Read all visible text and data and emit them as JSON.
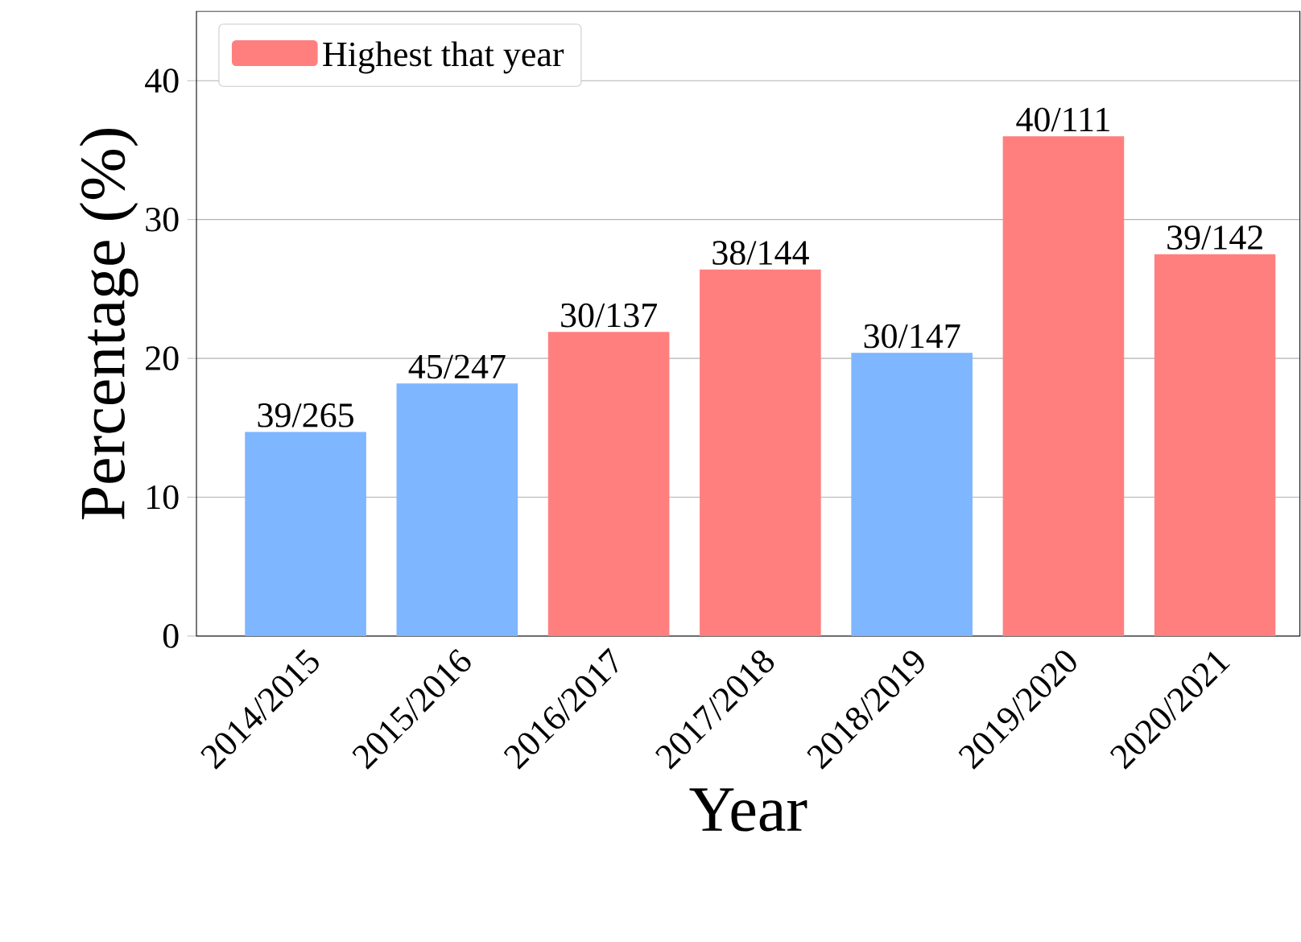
{
  "chart_data": {
    "type": "bar",
    "xlabel": "Year",
    "ylabel": "Percentage (%)",
    "categories": [
      "2014/2015",
      "2015/2016",
      "2016/2017",
      "2017/2018",
      "2018/2019",
      "2019/2020",
      "2020/2021"
    ],
    "series": [
      {
        "color": "#7eb6ff",
        "values": [
          14.7,
          18.2,
          null,
          null,
          20.4,
          null,
          null
        ],
        "value_labels": [
          "39/265",
          "45/247",
          null,
          null,
          "30/147",
          null,
          null
        ]
      },
      {
        "name": "Highest that year",
        "color": "#ff7f7f",
        "values": [
          null,
          null,
          21.9,
          26.4,
          null,
          36.0,
          27.5
        ],
        "value_labels": [
          null,
          null,
          "30/137",
          "38/144",
          null,
          "40/111",
          "39/142"
        ]
      }
    ],
    "ylim": [
      0,
      45
    ],
    "yticks": [
      0,
      10,
      20,
      30,
      40
    ],
    "grid": "y",
    "legend": "top left"
  }
}
